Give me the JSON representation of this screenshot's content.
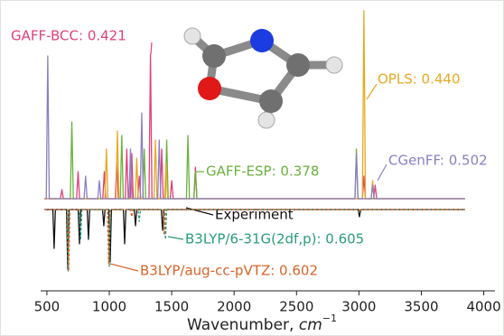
{
  "chart_data": {
    "type": "line",
    "x_label": {
      "text": "Wavenumber, ",
      "unit": "cm",
      "exponent": "−1"
    },
    "xlim": [
      450,
      4090
    ],
    "ylim": [
      -1.02,
      2.12
    ],
    "xticks": [
      500,
      1000,
      1500,
      2000,
      2500,
      3000,
      3500,
      4000
    ],
    "series": [
      {
        "name": "GAFF-BCC: 0.421",
        "color": "#e0407a",
        "dash": false,
        "x": [
          480,
          608,
          620,
          632,
          738,
          750,
          762,
          948,
          960,
          972,
          1048,
          1060,
          1072,
          1128,
          1140,
          1152,
          1168,
          1180,
          1192,
          1228,
          1240,
          1252,
          1318,
          1330,
          1342,
          1408,
          1420,
          1432,
          1488,
          1500,
          1512,
          1678,
          1690,
          1702,
          3028,
          3040,
          3052,
          3118,
          3130,
          3142,
          3850
        ],
        "values": [
          0,
          0,
          0.1,
          0,
          0,
          0.3,
          0,
          0,
          0.3,
          0,
          0,
          0.4,
          0,
          0,
          0.55,
          0,
          0,
          0.5,
          0,
          0,
          0.25,
          0,
          0,
          1.6,
          0,
          0,
          0.55,
          0,
          0,
          0.2,
          0,
          0,
          0.35,
          0,
          0,
          0.25,
          0,
          0,
          0.15,
          0,
          0
        ]
      },
      {
        "name": "GAFF-ESP: 0.378",
        "color": "#6ab23c",
        "dash": false,
        "x": [
          480,
          688,
          700,
          712,
          1088,
          1100,
          1112,
          1268,
          1280,
          1292,
          1448,
          1460,
          1472,
          1618,
          1630,
          1642,
          1678,
          1690,
          1702,
          2968,
          2980,
          2992,
          3850
        ],
        "values": [
          0,
          0,
          0.85,
          0,
          0,
          0.7,
          0,
          0,
          0.55,
          0,
          0,
          0.65,
          0,
          0,
          0.7,
          0,
          0,
          0.3,
          0,
          0,
          0.55,
          0,
          0
        ]
      },
      {
        "name": "OPLS: 0.440",
        "color": "#e8a820",
        "dash": false,
        "x": [
          480,
          965,
          977,
          989,
          1053,
          1065,
          1077,
          1208,
          1220,
          1232,
          1358,
          1370,
          1382,
          1443,
          1455,
          1467,
          3028,
          3040,
          3052,
          3098,
          3110,
          3122,
          3850
        ],
        "values": [
          0,
          0,
          0.55,
          0,
          0,
          0.75,
          0,
          0,
          0.45,
          0,
          0,
          0.65,
          0,
          0,
          0.4,
          0,
          0,
          2.08,
          0,
          0,
          0.2,
          0,
          0
        ]
      },
      {
        "name": "CGenFF: 0.502",
        "color": "#8a7fc4",
        "dash": false,
        "x": [
          480,
          495,
          507,
          519,
          798,
          810,
          822,
          908,
          920,
          932,
          1158,
          1170,
          1182,
          1248,
          1260,
          1272,
          1388,
          1400,
          1412,
          2968,
          2980,
          2992,
          3098,
          3110,
          3122,
          3850
        ],
        "values": [
          0,
          0,
          1.58,
          0,
          0,
          0.25,
          0,
          0,
          0.2,
          0,
          0,
          0.55,
          0,
          0,
          0.95,
          0,
          0,
          0.65,
          0,
          0,
          0.5,
          0,
          0,
          0.15,
          0,
          0
        ]
      },
      {
        "name": "Experiment",
        "color": "#111111",
        "dash": false,
        "x": [
          480,
          548,
          558,
          568,
          657,
          667,
          677,
          751,
          761,
          771,
          823,
          833,
          843,
          946,
          956,
          966,
          997,
          1007,
          1017,
          1113,
          1123,
          1133,
          1200,
          1210,
          1220,
          1417,
          1427,
          1437,
          2994,
          3004,
          3014,
          3850
        ],
        "values": [
          -0.12,
          -0.12,
          -0.55,
          -0.12,
          -0.12,
          -0.78,
          -0.12,
          -0.12,
          -0.5,
          -0.12,
          -0.12,
          -0.45,
          -0.12,
          -0.12,
          -0.3,
          -0.12,
          -0.12,
          -0.7,
          -0.12,
          -0.12,
          -0.5,
          -0.12,
          -0.12,
          -0.3,
          -0.12,
          -0.12,
          -0.35,
          -0.12,
          -0.12,
          -0.2,
          -0.12,
          -0.12
        ]
      },
      {
        "name": "B3LYP/6-31G(2df,p): 0.605",
        "color": "#2a9d74",
        "dash": true,
        "x": [
          480,
          660,
          670,
          680,
          760,
          770,
          780,
          990,
          1000,
          1010,
          1230,
          1240,
          1250,
          1440,
          1450,
          1460,
          2990,
          3000,
          3010,
          3850
        ],
        "values": [
          -0.12,
          -0.12,
          -0.8,
          -0.12,
          -0.12,
          -0.45,
          -0.12,
          -0.12,
          -0.75,
          -0.12,
          -0.12,
          -0.25,
          -0.12,
          -0.12,
          -0.45,
          -0.12,
          -0.12,
          -0.15,
          -0.12,
          -0.12
        ]
      },
      {
        "name": "B3LYP/aug-cc-pVTZ: 0.602",
        "color": "#d9642a",
        "dash": true,
        "x": [
          480,
          665,
          675,
          685,
          985,
          995,
          1005,
          1170,
          1180,
          1190,
          1430,
          1440,
          1450,
          3000,
          3010,
          3020,
          3850
        ],
        "values": [
          -0.12,
          -0.12,
          -0.8,
          -0.12,
          -0.12,
          -0.72,
          -0.12,
          -0.12,
          -0.2,
          -0.12,
          -0.12,
          -0.4,
          -0.12,
          -0.12,
          -0.15,
          -0.12,
          -0.12
        ]
      }
    ]
  }
}
